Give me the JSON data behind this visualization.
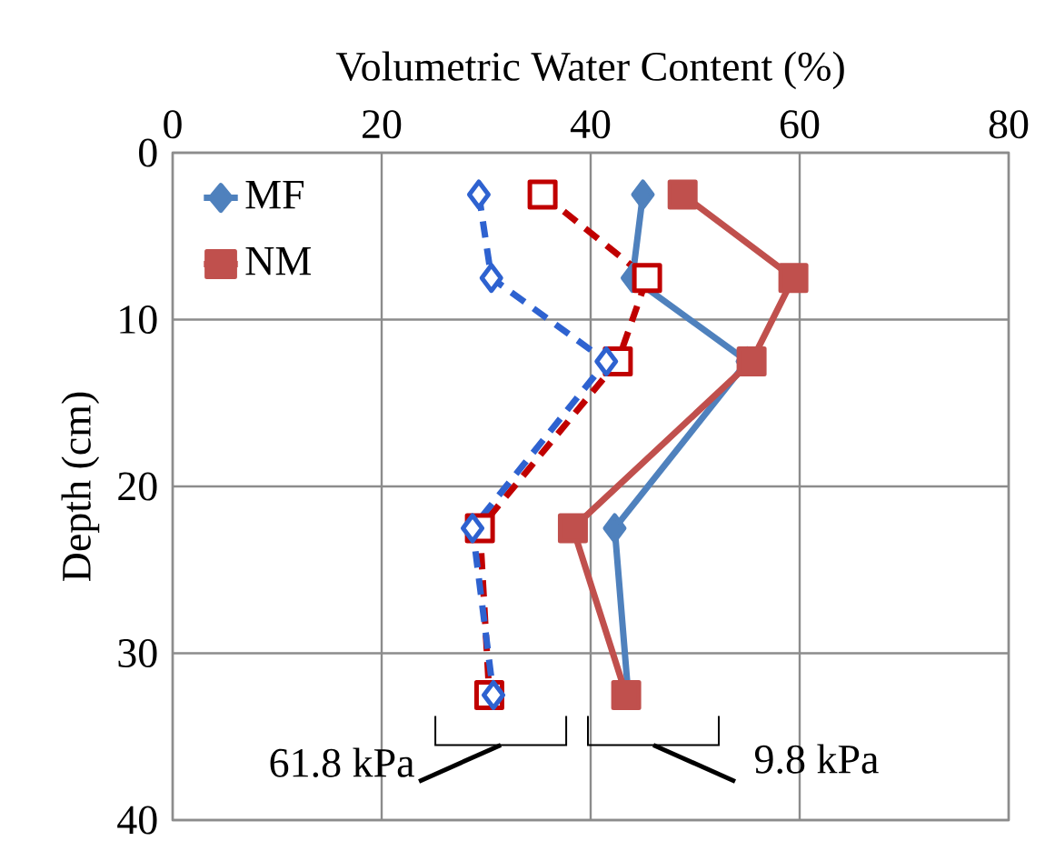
{
  "chart_data": {
    "type": "line",
    "orientation": "horizontal",
    "xlabel": "Volumetric Water Content (%)",
    "ylabel": "Depth (cm)",
    "xlim": [
      0,
      80
    ],
    "xticks": [
      0,
      20,
      40,
      60,
      80
    ],
    "ylim": [
      40,
      0
    ],
    "yticks": [
      0,
      10,
      20,
      30,
      40
    ],
    "grid": true,
    "legend": "top left",
    "series": [
      {
        "name": "MF",
        "color": "#4f81bd",
        "marker": "diamond",
        "line_style": "solid",
        "x": [
          2.5,
          7.5,
          12.5,
          22.5,
          32.5
        ],
        "values": [
          45.0,
          44.0,
          55.0,
          42.3,
          43.6
        ]
      },
      {
        "name": "NM",
        "color": "#c0504d",
        "marker": "square",
        "line_style": "solid",
        "x": [
          2.5,
          7.5,
          12.5,
          22.5,
          32.5
        ],
        "values": [
          48.8,
          59.4,
          55.4,
          38.3,
          43.4
        ]
      },
      {
        "color": "#2e62d0",
        "marker": "diamond",
        "line_style": "dashed",
        "x": [
          2.5,
          7.5,
          12.5,
          22.5,
          32.5
        ],
        "values": [
          29.3,
          30.5,
          41.5,
          28.7,
          30.7
        ]
      },
      {
        "color": "#c00000",
        "marker": "square",
        "line_style": "dashed",
        "x": [
          2.5,
          7.5,
          12.5,
          22.5,
          32.5
        ],
        "values": [
          35.4,
          45.4,
          42.6,
          29.4,
          30.3
        ]
      }
    ],
    "annotations": [
      "61.8 kPa",
      "9.8 kPa"
    ]
  }
}
